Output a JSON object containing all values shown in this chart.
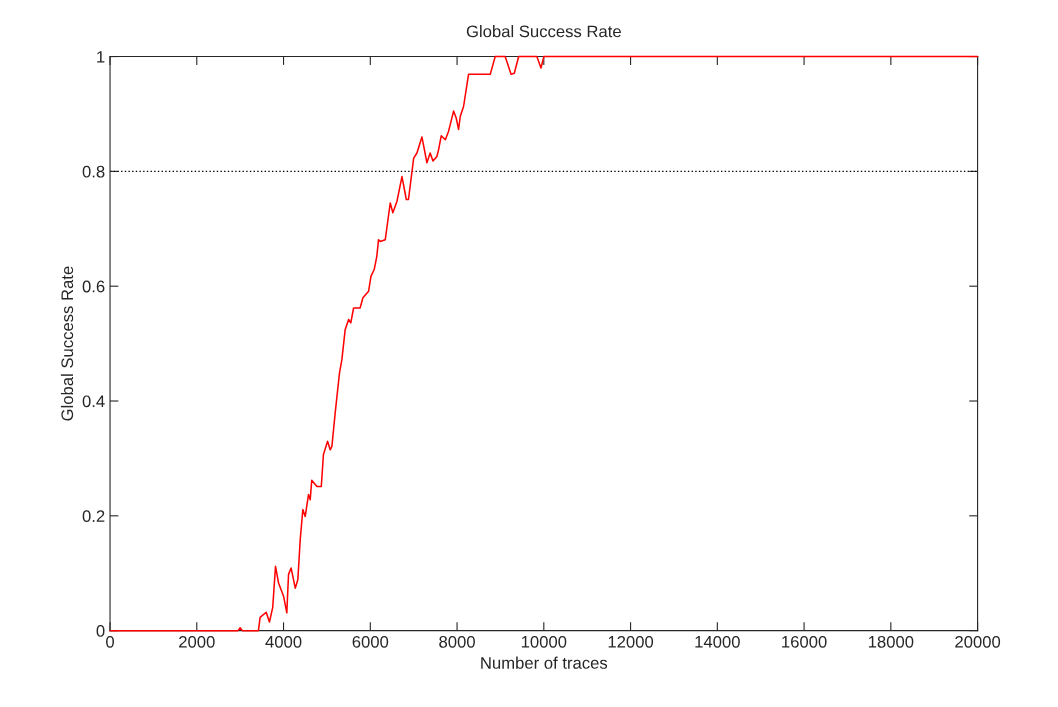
{
  "chart_data": {
    "type": "line",
    "title": "Global Success Rate",
    "xlabel": "Number of traces",
    "ylabel": "Global Success Rate",
    "xlim": [
      0,
      20000
    ],
    "xticks": [
      0,
      2000,
      4000,
      6000,
      8000,
      10000,
      12000,
      14000,
      16000,
      18000,
      20000
    ],
    "ylim": [
      0,
      1
    ],
    "yticks": [
      0,
      0.2,
      0.4,
      0.6,
      0.8,
      1
    ],
    "grid": false,
    "legend": false,
    "marker": "none",
    "line_style": "solid",
    "ref_lines": [
      {
        "axis": "y",
        "value": 0.8,
        "color": "#000000",
        "line_style": "dotted"
      }
    ],
    "series": [
      {
        "color": "#ff0000",
        "x": [
          0,
          2950,
          3000,
          3050,
          3420,
          3460,
          3600,
          3675,
          3750,
          3815,
          3885,
          4000,
          4075,
          4115,
          4175,
          4270,
          4330,
          4385,
          4445,
          4500,
          4575,
          4615,
          4650,
          4770,
          4870,
          4920,
          5015,
          5075,
          5115,
          5190,
          5290,
          5345,
          5420,
          5500,
          5550,
          5615,
          5765,
          5830,
          5960,
          6015,
          6090,
          6150,
          6190,
          6230,
          6345,
          6460,
          6520,
          6615,
          6730,
          6830,
          6880,
          7000,
          7075,
          7190,
          7305,
          7380,
          7445,
          7535,
          7575,
          7635,
          7730,
          7805,
          7920,
          7980,
          8035,
          8075,
          8150,
          8265,
          8765,
          8880,
          9110,
          9245,
          9320,
          9420,
          9840,
          9935,
          10000,
          20000
        ],
        "values": [
          0,
          0,
          0.005,
          0,
          0,
          0.023,
          0.032,
          0.015,
          0.04,
          0.112,
          0.083,
          0.06,
          0.031,
          0.098,
          0.109,
          0.074,
          0.089,
          0.159,
          0.211,
          0.199,
          0.237,
          0.228,
          0.262,
          0.251,
          0.251,
          0.307,
          0.33,
          0.315,
          0.321,
          0.379,
          0.449,
          0.472,
          0.524,
          0.542,
          0.536,
          0.562,
          0.562,
          0.58,
          0.591,
          0.617,
          0.629,
          0.652,
          0.681,
          0.678,
          0.681,
          0.745,
          0.728,
          0.748,
          0.791,
          0.751,
          0.751,
          0.823,
          0.832,
          0.86,
          0.815,
          0.832,
          0.818,
          0.826,
          0.838,
          0.862,
          0.855,
          0.87,
          0.905,
          0.893,
          0.873,
          0.896,
          0.913,
          0.969,
          0.969,
          1,
          1,
          0.969,
          0.971,
          1,
          1,
          0.98,
          1,
          1
        ]
      }
    ]
  }
}
